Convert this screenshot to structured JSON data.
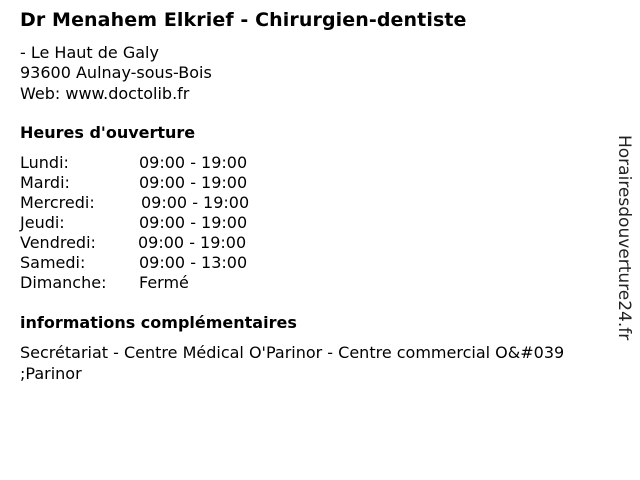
{
  "title": "Dr Menahem Elkrief - Chirurgien-dentiste",
  "address": {
    "street": "- Le Haut de Galy",
    "city": "93600 Aulnay-sous-Bois",
    "web": "Web: www.doctolib.fr"
  },
  "hours": {
    "heading": "Heures d'ouverture",
    "rows": [
      {
        "day": "Lundi:",
        "time": "09:00 - 19:00"
      },
      {
        "day": "Mardi:",
        "time": "09:00 - 19:00"
      },
      {
        "day": "Mercredi:",
        "time": "09:00 - 19:00"
      },
      {
        "day": "Jeudi:",
        "time": "09:00 - 19:00"
      },
      {
        "day": "Vendredi:",
        "time": "09:00 - 19:00"
      },
      {
        "day": "Samedi:",
        "time": "09:00 - 13:00"
      },
      {
        "day": "Dimanche:",
        "time": "Fermé"
      }
    ]
  },
  "info": {
    "heading": "informations complémentaires",
    "line1": "Secrétariat - Centre Médical O'Parinor - Centre commercial O&#039",
    "line2": ";Parinor"
  },
  "watermark": "Horairesdouverture24.fr"
}
